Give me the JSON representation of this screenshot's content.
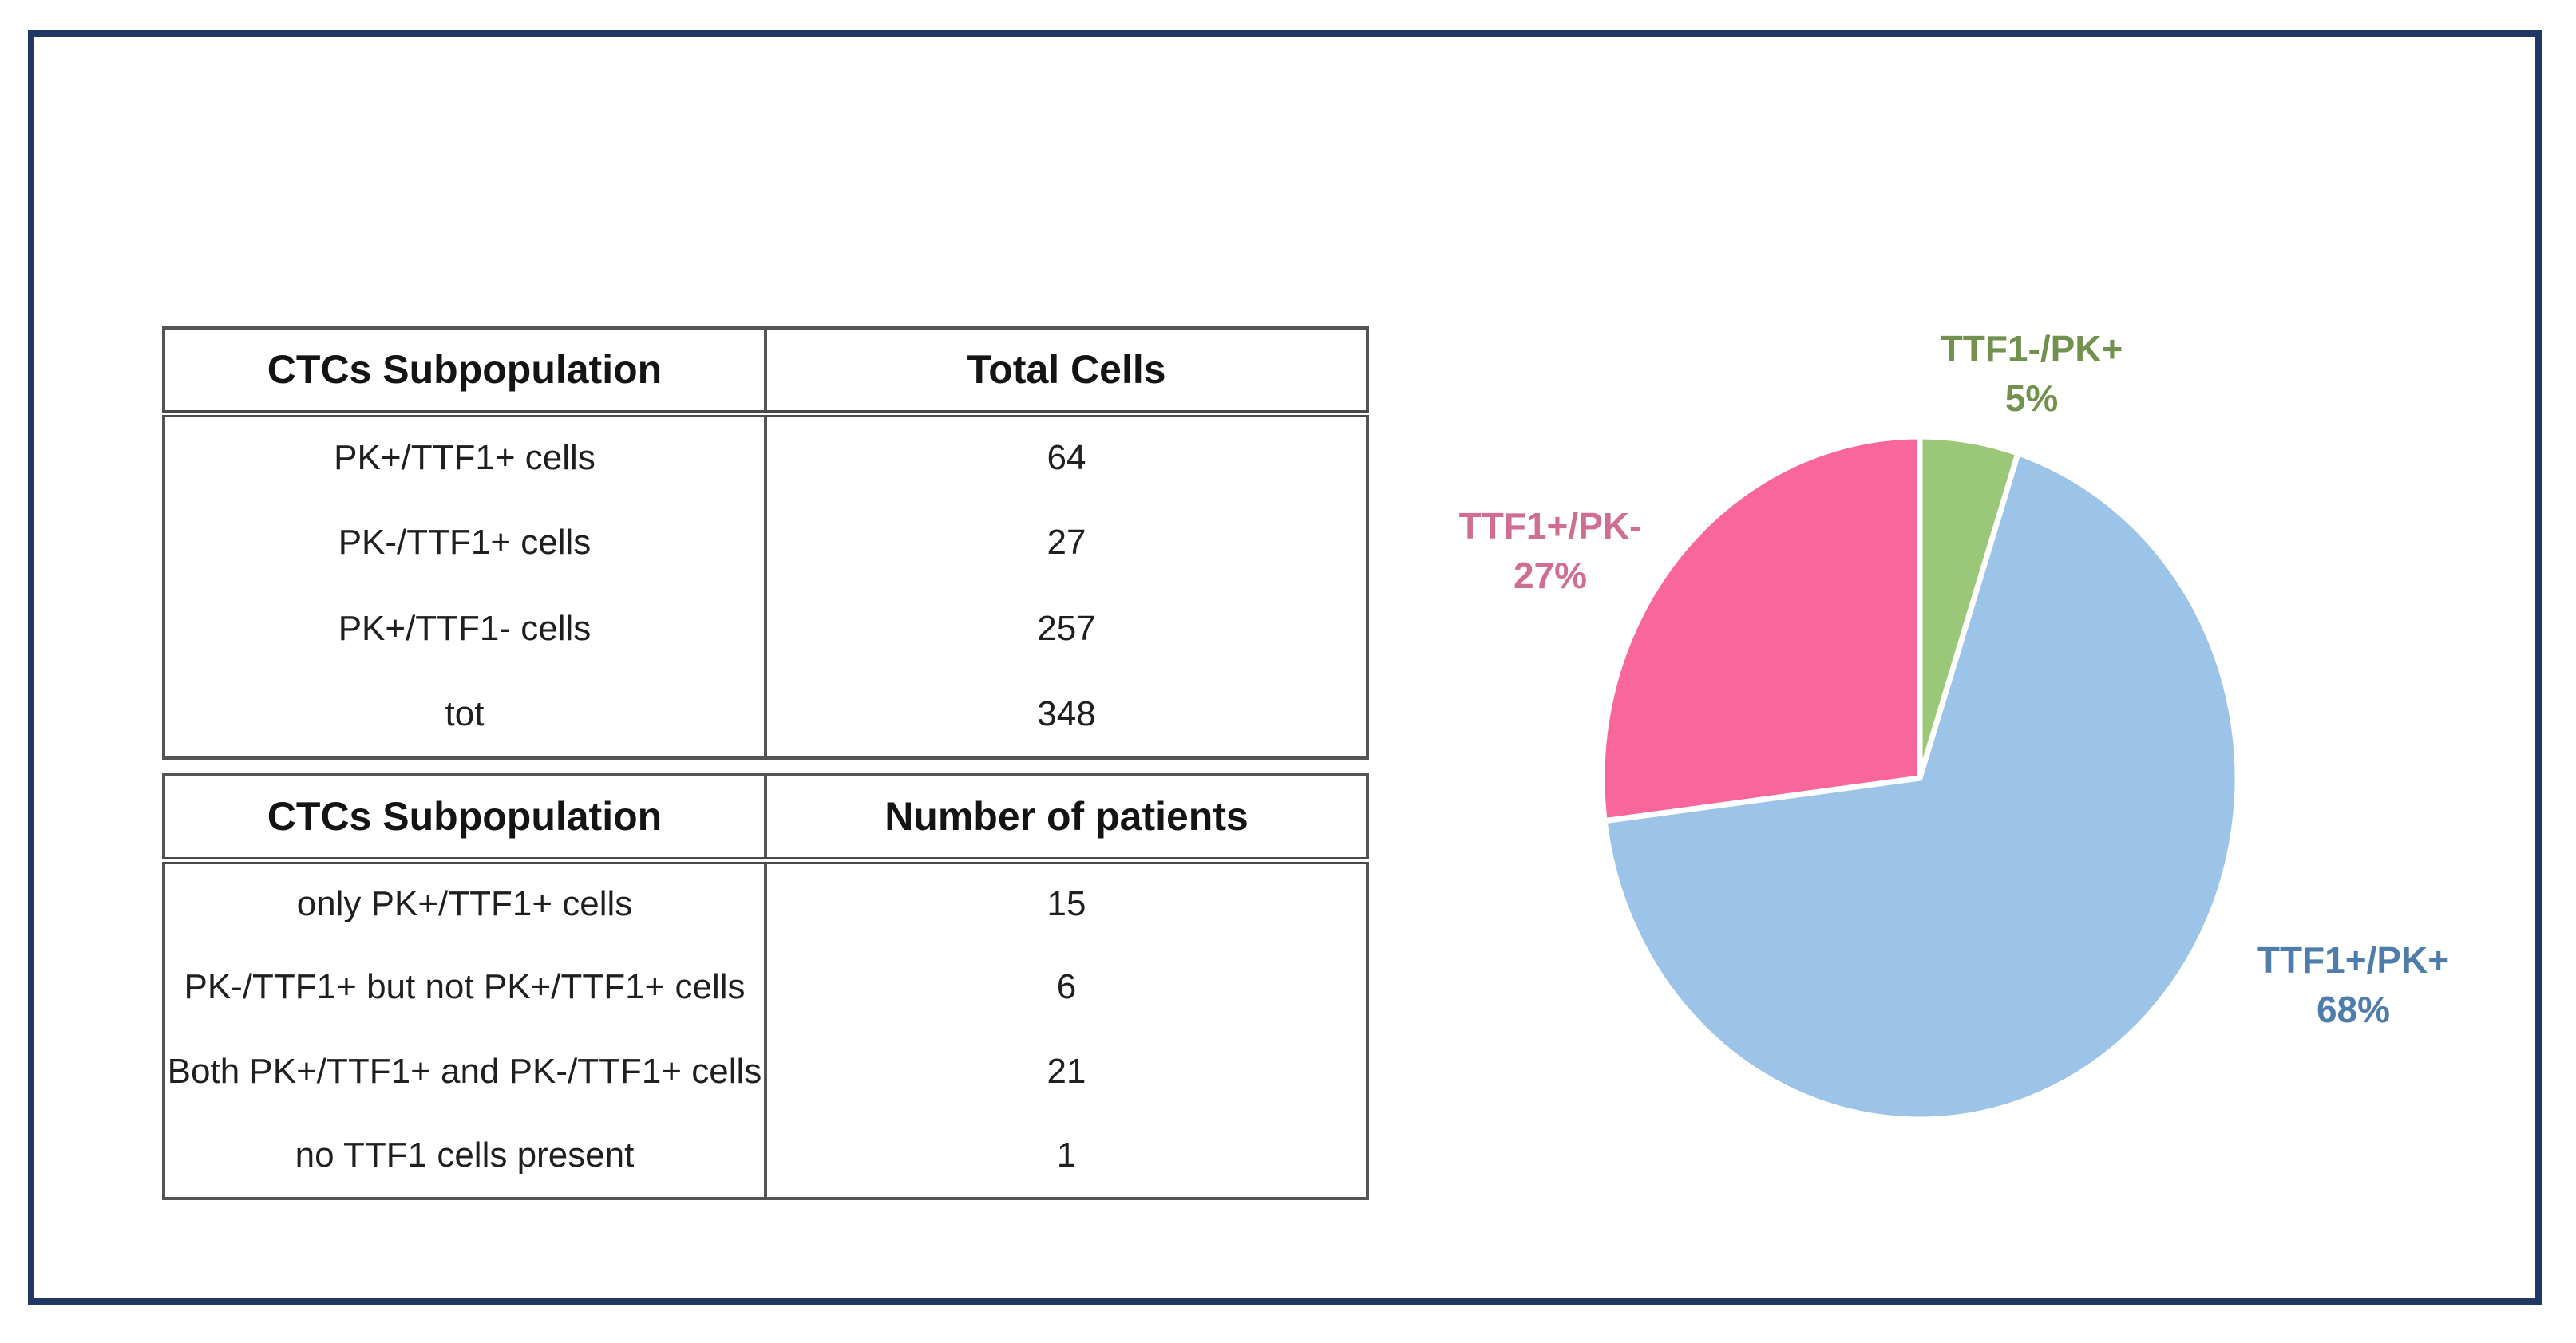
{
  "frame": {
    "border_color": "#1f3864",
    "background": "#ffffff"
  },
  "tables": [
    {
      "name": "total-cells-table",
      "headers": [
        "CTCs Subpopulation",
        "Total Cells"
      ],
      "rows": [
        [
          "PK+/TTF1+ cells",
          "64"
        ],
        [
          "PK-/TTF1+ cells",
          "27"
        ],
        [
          "PK+/TTF1- cells",
          "257"
        ],
        [
          "tot",
          "348"
        ]
      ]
    },
    {
      "name": "patients-table",
      "headers": [
        "CTCs Subpopulation",
        "Number of patients"
      ],
      "rows": [
        [
          "only PK+/TTF1+ cells",
          "15"
        ],
        [
          "PK-/TTF1+ but not PK+/TTF1+ cells",
          "6"
        ],
        [
          "Both PK+/TTF1+ and PK-/TTF1+ cells",
          "21"
        ],
        [
          "no TTF1 cells present",
          "1"
        ]
      ]
    }
  ],
  "chart_data": {
    "type": "pie",
    "title": "",
    "start_angle_deg": 0,
    "direction": "clockwise",
    "legend_position": "outside-labels",
    "slice_border_color": "#ffffff",
    "slices": [
      {
        "label": "TTF1-/PK+",
        "pct": 5,
        "pct_label": "5%",
        "color": "#9bc878",
        "label_color": "#73914e"
      },
      {
        "label": "TTF1+/PK+",
        "pct": 68,
        "pct_label": "68%",
        "color": "#9cc3e8",
        "label_color": "#4e7dab"
      },
      {
        "label": "TTF1+/PK-",
        "pct": 27,
        "pct_label": "27%",
        "color": "#f9669b",
        "label_color": "#cf6d92"
      }
    ]
  }
}
